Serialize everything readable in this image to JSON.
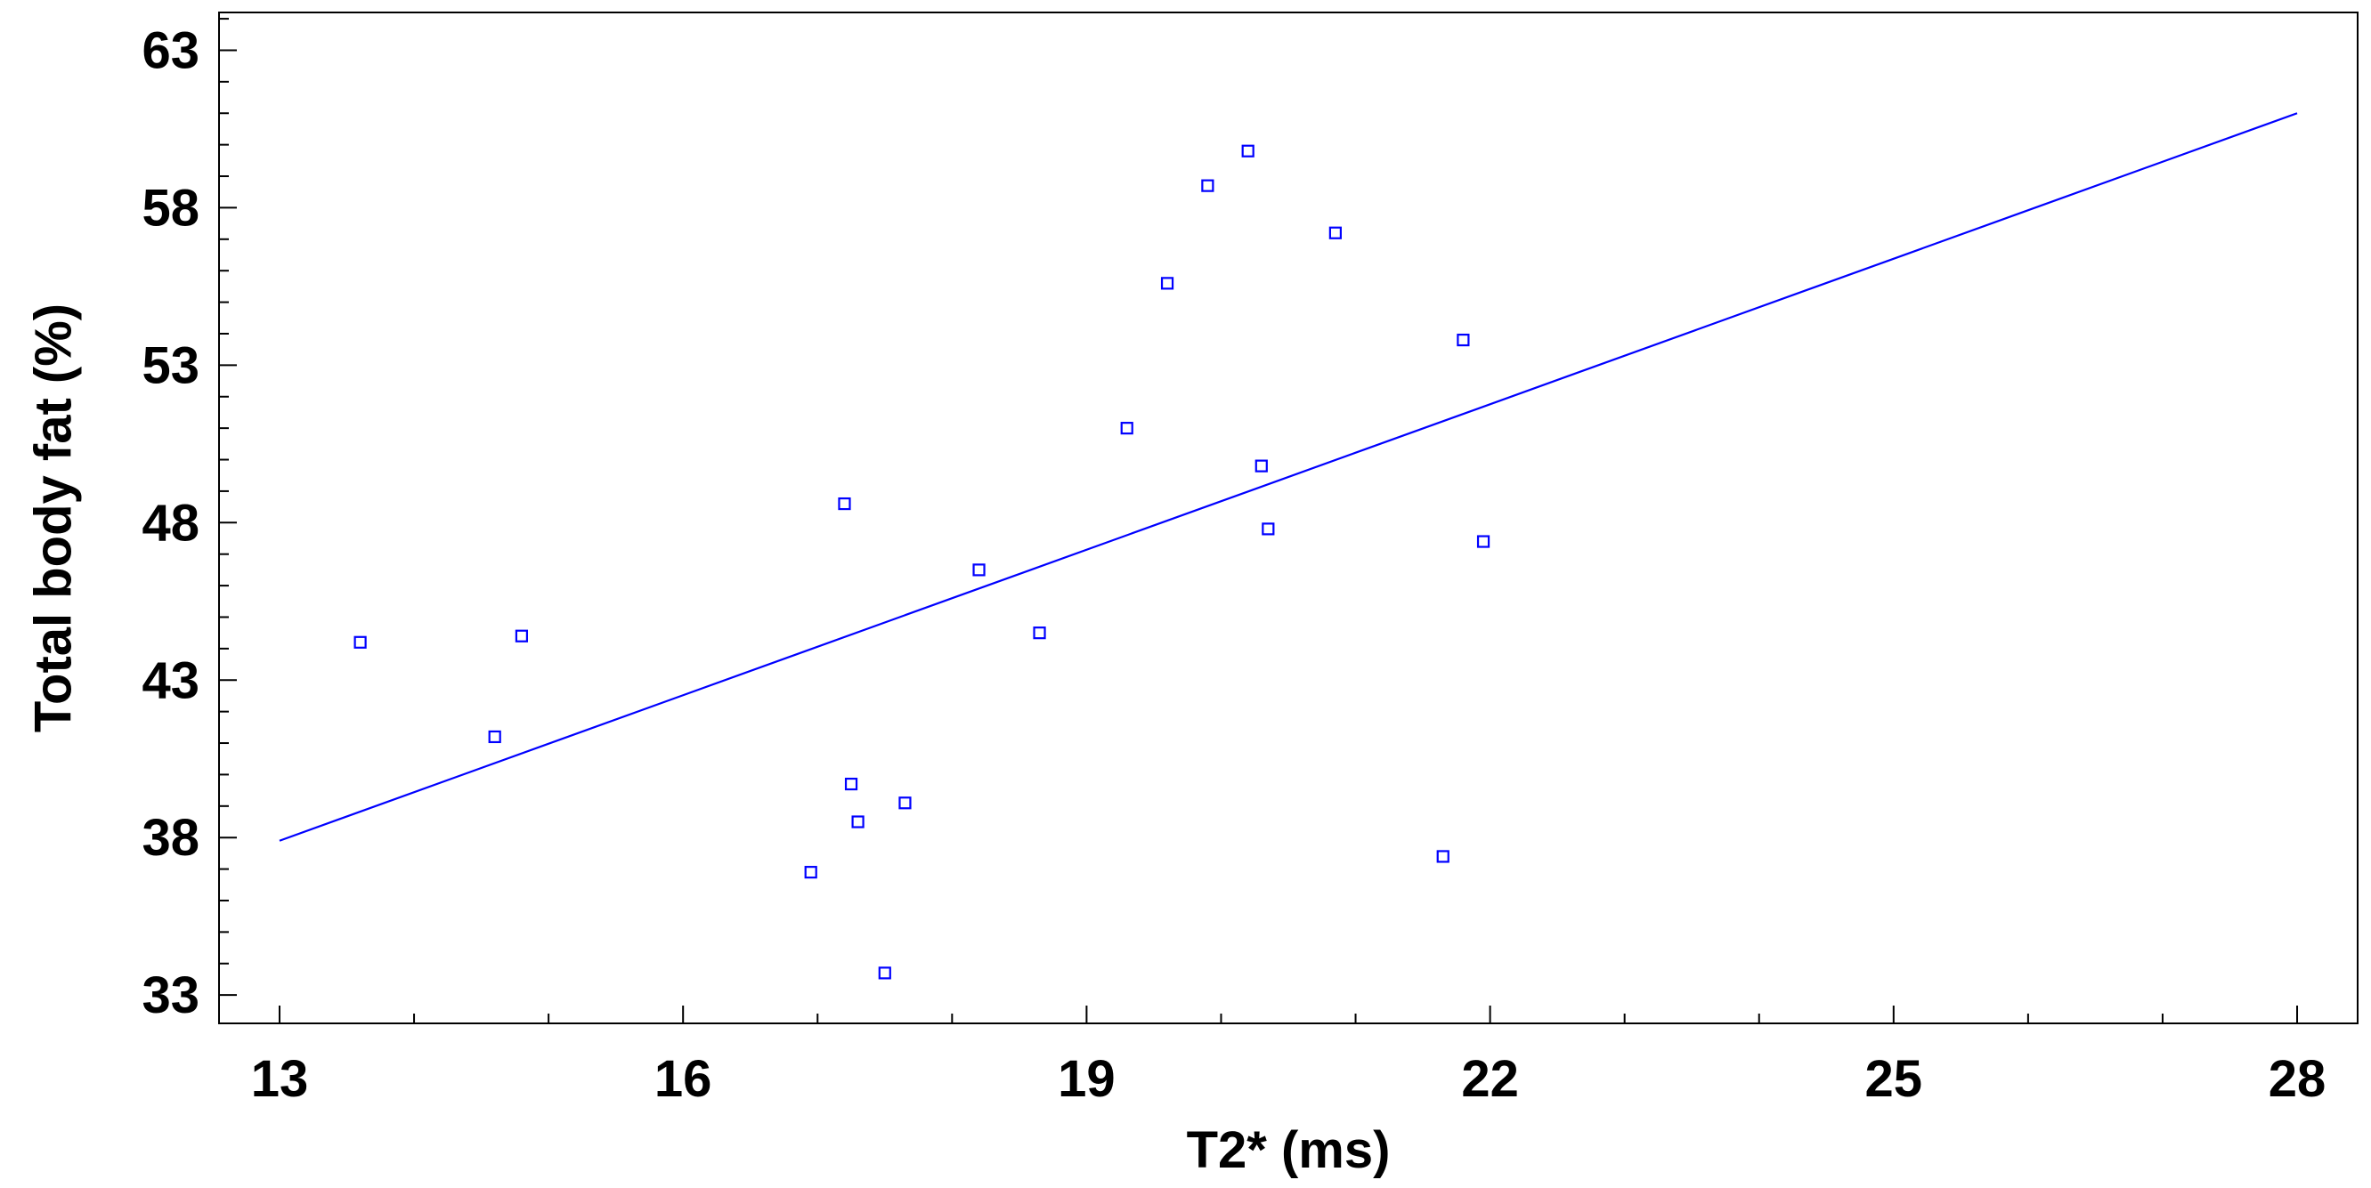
{
  "chart_data": {
    "type": "scatter",
    "title": "",
    "xlabel": "T2* (ms)",
    "ylabel": "Total body fat (%)",
    "xlim": [
      12.55,
      28.45
    ],
    "ylim": [
      32.1,
      64.2
    ],
    "x_ticks": [
      13,
      16,
      19,
      22,
      25,
      28
    ],
    "x_tick_labels": [
      "13",
      "16",
      "19",
      "22",
      "25",
      "28"
    ],
    "y_ticks": [
      33,
      38,
      43,
      48,
      53,
      58,
      63
    ],
    "y_tick_labels": [
      "33",
      "38",
      "43",
      "48",
      "53",
      "58",
      "63"
    ],
    "x_minor_step": 1,
    "y_minor_step": 1,
    "grid": false,
    "legend": "none",
    "series": [
      {
        "kind": "points",
        "marker": "open-square",
        "color": "#0000ff",
        "points": [
          {
            "x": 13.6,
            "y": 44.2
          },
          {
            "x": 14.6,
            "y": 41.2
          },
          {
            "x": 14.8,
            "y": 44.4
          },
          {
            "x": 16.95,
            "y": 36.9
          },
          {
            "x": 17.2,
            "y": 48.6
          },
          {
            "x": 17.25,
            "y": 39.7
          },
          {
            "x": 17.3,
            "y": 38.5
          },
          {
            "x": 17.5,
            "y": 33.7
          },
          {
            "x": 17.65,
            "y": 39.1
          },
          {
            "x": 18.2,
            "y": 46.5
          },
          {
            "x": 18.65,
            "y": 44.5
          },
          {
            "x": 19.3,
            "y": 51.0
          },
          {
            "x": 19.6,
            "y": 55.6
          },
          {
            "x": 19.9,
            "y": 58.7
          },
          {
            "x": 20.2,
            "y": 59.8
          },
          {
            "x": 20.3,
            "y": 49.8
          },
          {
            "x": 20.35,
            "y": 47.8
          },
          {
            "x": 20.85,
            "y": 57.2
          },
          {
            "x": 21.65,
            "y": 37.4
          },
          {
            "x": 21.8,
            "y": 53.8
          },
          {
            "x": 21.95,
            "y": 47.4
          }
        ]
      },
      {
        "kind": "fit-line",
        "color": "#0000ff",
        "x": [
          13,
          28
        ],
        "y": [
          37.9,
          61.0
        ]
      }
    ]
  }
}
